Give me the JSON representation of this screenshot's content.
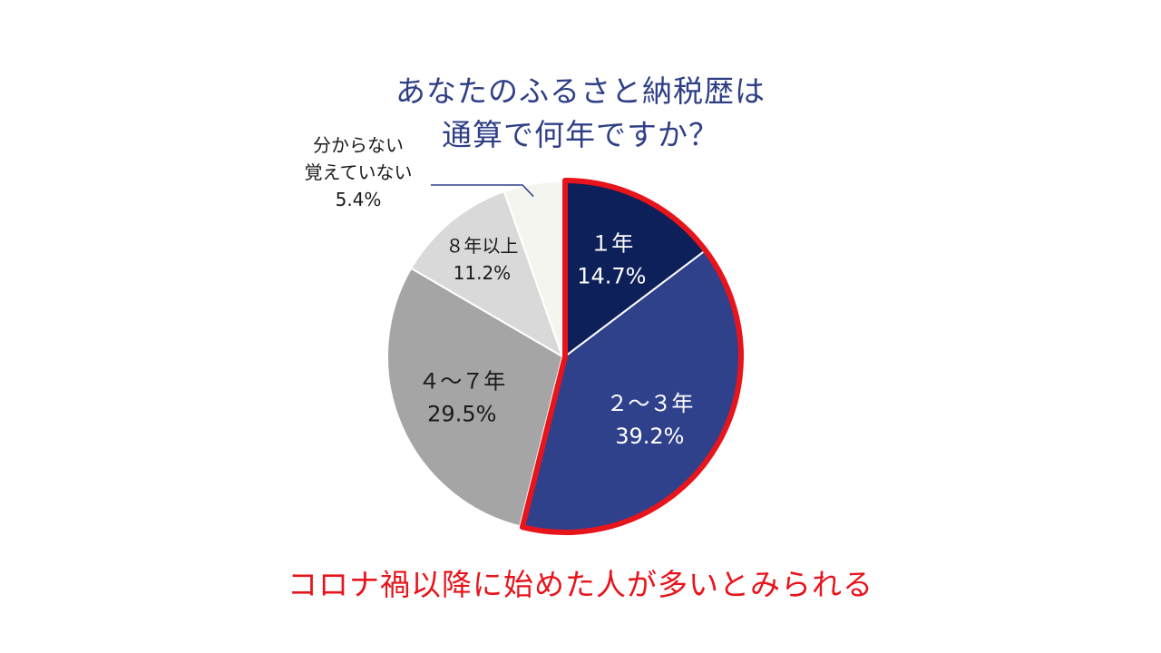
{
  "title_lines": [
    "あなたのふるさと納税歴は",
    "通算で何年ですか？"
  ],
  "conclusion": "コロナ禍以降に始めた人が多いとみられる",
  "colors": {
    "title": "#2f3f86",
    "highlight": "#e8141c"
  },
  "chart_data": {
    "type": "pie",
    "start": "12 o'clock",
    "direction": "clockwise",
    "unit": "%",
    "slices": [
      {
        "label": "１年",
        "value": 14.7,
        "display": "14.7%",
        "color": "#0e2059",
        "highlighted": true
      },
      {
        "label": "２～３年",
        "value": 39.2,
        "display": "39.2%",
        "color": "#30418c",
        "highlighted": true
      },
      {
        "label": "４～７年",
        "value": 29.5,
        "display": "29.5%",
        "color": "#a5a5a5",
        "highlighted": false
      },
      {
        "label": "８年以上",
        "value": 11.2,
        "display": "11.2%",
        "color": "#d9d9d9",
        "highlighted": false
      },
      {
        "label": "分からない\n覚えていない",
        "value": 5.4,
        "display": "5.4%",
        "color": "#f5f5ef",
        "highlighted": false
      }
    ]
  }
}
